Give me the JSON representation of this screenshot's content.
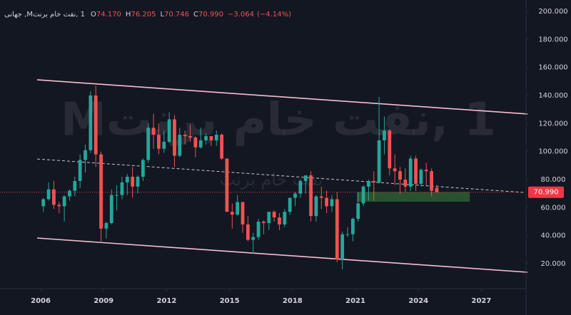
{
  "chart_data": {
    "type": "candlestick",
    "header": {
      "symbol": "1 ,نفت خام برنتM, جهانی",
      "fields": [
        {
          "label": "O",
          "value": 74.17,
          "value_label": "74.170"
        },
        {
          "label": "H",
          "value": 76.205,
          "value_label": "76.205"
        },
        {
          "label": "L",
          "value": 70.746,
          "value_label": "70.746"
        },
        {
          "label": "C",
          "value": 70.99,
          "value_label": "70.990"
        }
      ],
      "change": -3.064,
      "change_label": "−3.064",
      "change_pct": -4.14,
      "change_pct_label": "(−4.14%)"
    },
    "watermark": "1 ,نفت خام برنتM",
    "watermark_sub": "نفت خام برنت",
    "up_color": "#26a69a",
    "down_color": "#ef5350",
    "xlim": [
      2004.06,
      2029.06
    ],
    "ylim": [
      2.2,
      208.14
    ],
    "xticks": [
      2006,
      2009,
      2012,
      2015,
      2018,
      2021,
      2024,
      2027
    ],
    "yticks": [
      {
        "value": 20,
        "label": "20.000"
      },
      {
        "value": 40,
        "label": "40.000"
      },
      {
        "value": 60,
        "label": "60.000"
      },
      {
        "value": 80,
        "label": "80.000"
      },
      {
        "value": 100,
        "label": "100.000"
      },
      {
        "value": 120,
        "label": "120.000"
      },
      {
        "value": 140,
        "label": "140.000"
      },
      {
        "value": 160,
        "label": "160.000"
      },
      {
        "value": 180,
        "label": "180.000"
      },
      {
        "value": 200,
        "label": "200.000"
      }
    ],
    "last_price": {
      "value": 70.99,
      "label": "70.990",
      "color": "#f23645"
    },
    "trend_lines": [
      {
        "x": [
          2005.83,
          2029.2
        ],
        "y": [
          151.2,
          126.8
        ],
        "color": "#f8bbd0",
        "dashed": false
      },
      {
        "x": [
          2005.83,
          2029.2
        ],
        "y": [
          38.3,
          13.9
        ],
        "color": "#f8bbd0",
        "dashed": false
      },
      {
        "x": [
          2005.83,
          2029.06
        ],
        "y": [
          94.7,
          70.8
        ],
        "color": "#c8c8c8",
        "dashed": true
      }
    ],
    "zone": {
      "x": [
        2021.07,
        2026.45
      ],
      "y": [
        64.2,
        71.1
      ],
      "color": "#2e5e32"
    },
    "x": [
      2006.125,
      2006.375,
      2006.625,
      2006.875,
      2007.125,
      2007.375,
      2007.625,
      2007.875,
      2008.125,
      2008.375,
      2008.625,
      2008.875,
      2009.125,
      2009.375,
      2009.625,
      2009.875,
      2010.125,
      2010.375,
      2010.625,
      2010.875,
      2011.125,
      2011.375,
      2011.625,
      2011.875,
      2012.125,
      2012.375,
      2012.625,
      2012.875,
      2013.125,
      2013.375,
      2013.625,
      2013.875,
      2014.125,
      2014.375,
      2014.625,
      2014.875,
      2015.125,
      2015.375,
      2015.625,
      2015.875,
      2016.125,
      2016.375,
      2016.625,
      2016.875,
      2017.125,
      2017.375,
      2017.625,
      2017.875,
      2018.125,
      2018.375,
      2018.625,
      2018.875,
      2019.125,
      2019.375,
      2019.625,
      2019.875,
      2020.125,
      2020.375,
      2020.625,
      2020.875,
      2021.125,
      2021.375,
      2021.625,
      2021.875,
      2022.125,
      2022.375,
      2022.625,
      2022.875,
      2023.125,
      2023.375,
      2023.625,
      2023.875,
      2024.125,
      2024.375,
      2024.625,
      2024.875
    ],
    "open": [
      61,
      66,
      73,
      62,
      61,
      68,
      72,
      79,
      94,
      101,
      140,
      98,
      45,
      49,
      69,
      69,
      78,
      82,
      75,
      82,
      94,
      117,
      112,
      102,
      107,
      123,
      97,
      112,
      111,
      110,
      103,
      108,
      111,
      108,
      112,
      95,
      57,
      55,
      64,
      48,
      37,
      39,
      50,
      49,
      57,
      53,
      48,
      57,
      67,
      70,
      79,
      83,
      54,
      68,
      67,
      61,
      66,
      23,
      41,
      41,
      52,
      63,
      75,
      79,
      78,
      108,
      115,
      88,
      86,
      80,
      75,
      95,
      77,
      87,
      86,
      74.17
    ],
    "high": [
      67,
      78,
      79,
      64,
      69,
      73,
      82,
      98,
      105,
      143,
      147,
      100,
      50,
      73,
      76,
      82,
      84,
      89,
      83,
      95,
      120,
      127,
      120,
      115,
      128,
      126,
      117,
      115,
      119,
      111,
      117,
      113,
      111,
      115,
      113,
      95,
      63,
      69,
      64,
      54,
      42,
      52,
      51,
      57,
      58,
      56,
      59,
      67,
      71,
      80,
      83,
      86,
      69,
      75,
      72,
      69,
      71,
      43,
      46,
      53,
      71,
      76,
      80,
      86,
      139,
      125,
      116,
      98,
      89,
      88,
      97,
      97,
      88,
      92,
      88,
      76.205
    ],
    "low": [
      57,
      65,
      59,
      56,
      50,
      65,
      68,
      74,
      85,
      99,
      89,
      36,
      38,
      48,
      58,
      66,
      69,
      67,
      70,
      79,
      92,
      102,
      98,
      99,
      106,
      89,
      96,
      105,
      107,
      96,
      102,
      105,
      104,
      104,
      94,
      57,
      45,
      54,
      42,
      36,
      27,
      37,
      41,
      44,
      50,
      44,
      46,
      55,
      61,
      67,
      70,
      50,
      50,
      59,
      56,
      57,
      21,
      16,
      39,
      36,
      50,
      61,
      65,
      65,
      77,
      98,
      83,
      76,
      70,
      71,
      72,
      72,
      75,
      76,
      68,
      70.746
    ],
    "close": [
      66,
      73,
      62,
      61,
      68,
      72,
      79,
      94,
      101,
      140,
      98,
      45,
      49,
      69,
      69,
      78,
      82,
      75,
      82,
      94,
      117,
      112,
      102,
      107,
      123,
      97,
      112,
      111,
      110,
      103,
      108,
      111,
      108,
      112,
      95,
      57,
      55,
      64,
      48,
      37,
      39,
      50,
      49,
      57,
      53,
      48,
      57,
      67,
      70,
      79,
      83,
      54,
      68,
      67,
      61,
      66,
      23,
      41,
      41,
      52,
      63,
      75,
      79,
      78,
      108,
      115,
      88,
      86,
      80,
      75,
      95,
      77,
      87,
      86,
      72,
      70.99
    ]
  }
}
